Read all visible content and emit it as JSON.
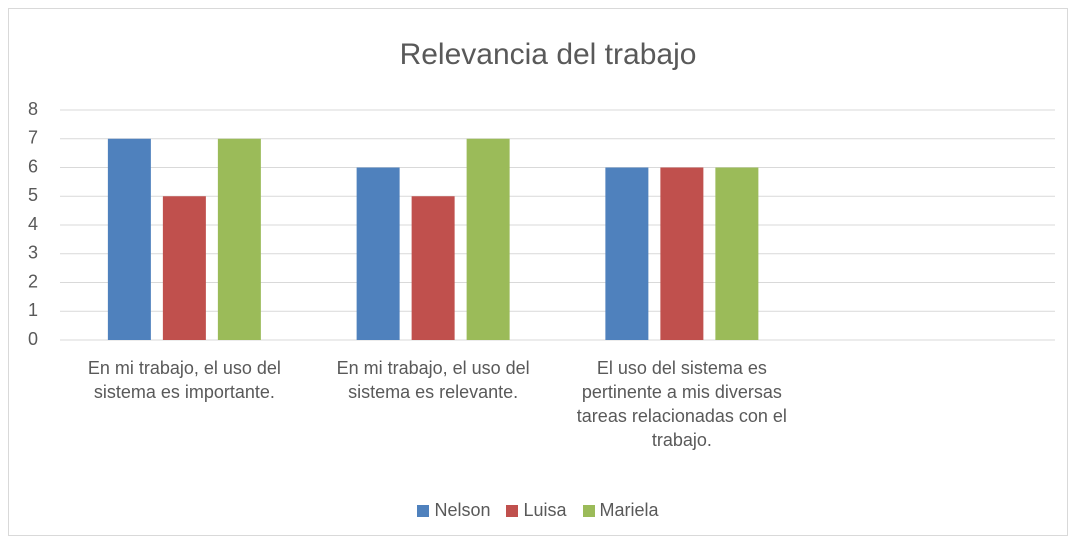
{
  "chart_data": {
    "type": "bar",
    "title": "Relevancia del trabajo",
    "categories": [
      "En mi trabajo, el uso del sistema es importante.",
      "En mi trabajo, el uso del sistema es relevante.",
      "El uso del sistema es pertinente a mis diversas tareas relacionadas con el trabajo.",
      null
    ],
    "series": [
      {
        "name": "Nelson",
        "color": "#4f81bd",
        "values": [
          7,
          6,
          6,
          null
        ]
      },
      {
        "name": "Luisa",
        "color": "#c0504d",
        "values": [
          5,
          5,
          6,
          null
        ]
      },
      {
        "name": "Mariela",
        "color": "#9bbb59",
        "values": [
          7,
          7,
          6,
          null
        ]
      }
    ],
    "ylim": [
      0,
      8
    ],
    "yticks": [
      0,
      1,
      2,
      3,
      4,
      5,
      6,
      7,
      8
    ],
    "grid": true,
    "legend": "bottom"
  }
}
